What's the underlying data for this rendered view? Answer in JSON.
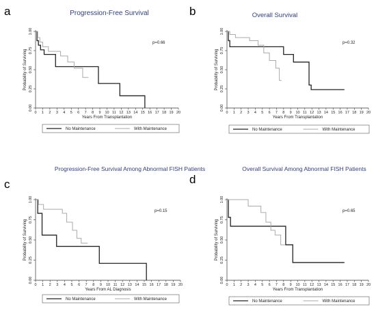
{
  "chart_data": [
    {
      "type": "line",
      "letter": "a",
      "title": "Progression-Free Survival",
      "xlabel": "Years From Transplantation",
      "ylabel": "Probability of Surviving",
      "xlim": [
        0,
        20
      ],
      "ylim": [
        0,
        1
      ],
      "xticks": [
        "0",
        "1",
        "2",
        "3",
        "4",
        "5",
        "6",
        "7",
        "8",
        "9",
        "10",
        "11",
        "12",
        "13",
        "14",
        "15",
        "16",
        "17",
        "18",
        "19",
        "20"
      ],
      "yticks": [
        "0.00",
        "0.25",
        "0.50",
        "0.75",
        "1.00"
      ],
      "pvalue": "p=0.66",
      "series": [
        {
          "name": "No Maintenance",
          "color": "#222222",
          "width": 1.3,
          "x": [
            0,
            0.2,
            0.4,
            0.7,
            1.2,
            2.8,
            8.6,
            8.8,
            11.8,
            15.3,
            15.3
          ],
          "y": [
            1.0,
            0.88,
            0.82,
            0.76,
            0.7,
            0.54,
            0.54,
            0.32,
            0.16,
            0.0,
            0.0
          ]
        },
        {
          "name": "With Maintenance",
          "color": "#aaaaaa",
          "width": 1.0,
          "x": [
            0,
            0.3,
            0.6,
            1.0,
            1.8,
            3.5,
            4.5,
            5.4,
            6.6,
            7.4
          ],
          "y": [
            1.0,
            0.92,
            0.86,
            0.8,
            0.74,
            0.68,
            0.6,
            0.52,
            0.4,
            0.4
          ]
        }
      ],
      "legend": [
        "No Maintenance",
        "With Maintenance"
      ]
    },
    {
      "type": "line",
      "letter": "b",
      "title": "Overall Survival",
      "xlabel": "Years From Transplantation",
      "ylabel": "Probability of Surviving",
      "xlim": [
        0,
        20
      ],
      "ylim": [
        0,
        1
      ],
      "xticks": [
        "0",
        "1",
        "2",
        "3",
        "4",
        "5",
        "6",
        "7",
        "8",
        "9",
        "10",
        "11",
        "12",
        "13",
        "14",
        "15",
        "16",
        "17",
        "18",
        "19",
        "20"
      ],
      "yticks": [
        "0.00",
        "0.25",
        "0.50",
        "0.75",
        "1.00"
      ],
      "pvalue": "p=0.32",
      "series": [
        {
          "name": "No Maintenance",
          "color": "#222222",
          "width": 1.3,
          "x": [
            0,
            0.2,
            0.4,
            8.0,
            9.4,
            11.6,
            11.9,
            16.6
          ],
          "y": [
            1.0,
            0.88,
            0.8,
            0.7,
            0.6,
            0.3,
            0.24,
            0.24
          ]
        },
        {
          "name": "With Maintenance",
          "color": "#aaaaaa",
          "width": 1.0,
          "x": [
            0,
            0.4,
            1.2,
            3.2,
            4.4,
            5.2,
            6.0,
            6.9,
            7.4,
            7.7
          ],
          "y": [
            1.0,
            0.96,
            0.92,
            0.88,
            0.82,
            0.72,
            0.62,
            0.52,
            0.36,
            0.36
          ]
        }
      ],
      "legend": [
        "No Maintenance",
        "With Maintenance"
      ]
    },
    {
      "type": "line",
      "letter": "c",
      "title": "Progression-Free Survival Among Abnormal FISH Patients",
      "xlabel": "Years From AL Diagnosis",
      "ylabel": "Probability of Surviving",
      "xlim": [
        0,
        20
      ],
      "ylim": [
        0,
        1
      ],
      "xticks": [
        "0",
        "1",
        "2",
        "3",
        "4",
        "5",
        "6",
        "7",
        "8",
        "9",
        "10",
        "11",
        "12",
        "13",
        "14",
        "15",
        "16",
        "17",
        "18",
        "19",
        "20"
      ],
      "yticks": [
        "0.00",
        "0.25",
        "0.50",
        "0.75",
        "1.00"
      ],
      "pvalue": "p=0.15",
      "series": [
        {
          "name": "No Maintenance",
          "color": "#222222",
          "width": 1.3,
          "x": [
            0,
            0.3,
            0.9,
            2.9,
            8.8,
            15.3,
            15.3
          ],
          "y": [
            1.0,
            0.83,
            0.56,
            0.42,
            0.21,
            0.0,
            0.0
          ]
        },
        {
          "name": "With Maintenance",
          "color": "#aaaaaa",
          "width": 1.0,
          "x": [
            0,
            0.4,
            1.1,
            3.7,
            4.3,
            5.1,
            5.7,
            6.3,
            7.2
          ],
          "y": [
            1.0,
            0.94,
            0.88,
            0.83,
            0.72,
            0.62,
            0.52,
            0.46,
            0.46
          ]
        }
      ],
      "legend": [
        "No Maintenance",
        "With Maintenance"
      ]
    },
    {
      "type": "line",
      "letter": "d",
      "title": "Overall Survival Among Abnormal FISH Patients",
      "xlabel": "Years From Transplantation",
      "ylabel": "Probability of Surviving",
      "xlim": [
        0,
        20
      ],
      "ylim": [
        0,
        1
      ],
      "xticks": [
        "0",
        "1",
        "2",
        "3",
        "4",
        "5",
        "6",
        "7",
        "8",
        "9",
        "10",
        "11",
        "12",
        "13",
        "14",
        "15",
        "16",
        "17",
        "18",
        "19",
        "20"
      ],
      "yticks": [
        "0.00",
        "0.25",
        "0.50",
        "0.75",
        "1.00"
      ],
      "pvalue": "p=0.65",
      "series": [
        {
          "name": "No Maintenance",
          "color": "#222222",
          "width": 1.3,
          "x": [
            0,
            0.2,
            0.5,
            8.3,
            9.3,
            16.6
          ],
          "y": [
            1.0,
            0.78,
            0.67,
            0.44,
            0.22,
            0.22
          ]
        },
        {
          "name": "With Maintenance",
          "color": "#aaaaaa",
          "width": 1.0,
          "x": [
            0,
            3.0,
            4.8,
            5.5,
            6.2,
            6.8,
            7.6,
            8.2
          ],
          "y": [
            1.0,
            0.92,
            0.84,
            0.72,
            0.62,
            0.56,
            0.44,
            0.44
          ]
        }
      ],
      "legend": [
        "No Maintenance",
        "With Maintenance"
      ]
    }
  ]
}
